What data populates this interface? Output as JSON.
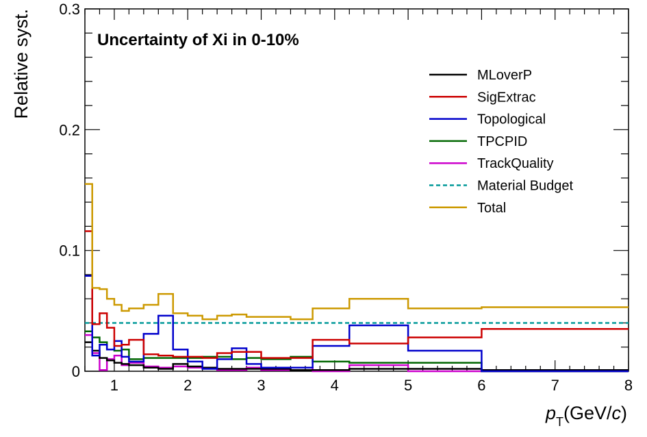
{
  "chart_data": {
    "type": "line",
    "title": "Uncertainty of Xi in 0-10%",
    "xlabel": {
      "symbol": "p",
      "subscript": "T",
      "units_prefix": "(GeV/",
      "units_var": "c",
      "units_suffix": ")"
    },
    "ylabel": "Relative syst.",
    "xlim": [
      0.6,
      8
    ],
    "ylim": [
      0,
      0.3
    ],
    "x_tick_labels": [
      "1",
      "2",
      "3",
      "4",
      "5",
      "6",
      "7",
      "8"
    ],
    "y_tick_labels": [
      "0",
      "0.1",
      "0.2",
      "0.3"
    ],
    "legend_position": "top-right",
    "grid": false,
    "bin_edges": [
      0.6,
      0.7,
      0.8,
      0.9,
      1.0,
      1.1,
      1.2,
      1.4,
      1.6,
      1.8,
      2.0,
      2.2,
      2.4,
      2.6,
      2.8,
      3.0,
      3.4,
      3.7,
      4.2,
      5.0,
      6.0,
      8.0
    ],
    "series": [
      {
        "name": "MLoverP",
        "color": "#000000",
        "style": "solid",
        "values": [
          0.024,
          0.017,
          0.011,
          0.009,
          0.007,
          0.006,
          0.005,
          0.003,
          0.002,
          0.006,
          0.004,
          0.003,
          0.002,
          0.002,
          0.002,
          0.002,
          0.001,
          0.001,
          0.002,
          0.002,
          0.001
        ]
      },
      {
        "name": "SigExtrac",
        "color": "#cc0000",
        "style": "solid",
        "values": [
          0.116,
          0.039,
          0.048,
          0.036,
          0.021,
          0.022,
          0.026,
          0.014,
          0.013,
          0.012,
          0.012,
          0.011,
          0.015,
          0.016,
          0.016,
          0.011,
          0.011,
          0.026,
          0.023,
          0.028,
          0.035
        ]
      },
      {
        "name": "Topological",
        "color": "#0000cc",
        "style": "solid",
        "values": [
          0.079,
          0.013,
          0.022,
          0.018,
          0.025,
          0.012,
          0.008,
          0.031,
          0.046,
          0.018,
          0.008,
          0.002,
          0.01,
          0.019,
          0.006,
          0.003,
          0.003,
          0.021,
          0.038,
          0.017,
          0.0
        ]
      },
      {
        "name": "TPCPID",
        "color": "#006600",
        "style": "solid",
        "values": [
          0.033,
          0.028,
          0.024,
          0.018,
          0.017,
          0.018,
          0.01,
          0.011,
          0.011,
          0.011,
          0.011,
          0.012,
          0.012,
          0.01,
          0.011,
          0.01,
          0.012,
          0.008,
          0.007,
          0.007,
          0.0
        ]
      },
      {
        "name": "TrackQuality",
        "color": "#cc00cc",
        "style": "solid",
        "values": [
          0.03,
          0.015,
          0.001,
          0.01,
          0.013,
          0.005,
          0.007,
          0.004,
          0.003,
          0.004,
          0.003,
          0.003,
          0.001,
          0.001,
          0.003,
          0.001,
          0.003,
          0.0,
          0.005,
          0.0,
          0.0
        ]
      },
      {
        "name": "Material Budget",
        "color": "#009999",
        "style": "dashed",
        "constant": 0.04
      },
      {
        "name": "Total",
        "color": "#cc9900",
        "style": "solid",
        "values": [
          0.155,
          0.069,
          0.068,
          0.06,
          0.055,
          0.05,
          0.052,
          0.055,
          0.064,
          0.048,
          0.046,
          0.043,
          0.046,
          0.047,
          0.045,
          0.045,
          0.043,
          0.052,
          0.06,
          0.052,
          0.053
        ]
      }
    ]
  }
}
